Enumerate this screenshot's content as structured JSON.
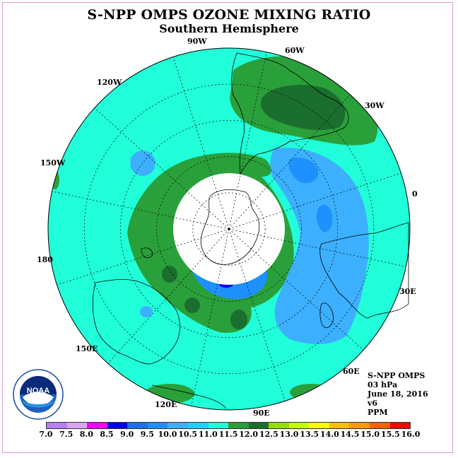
{
  "title": "S-NPP OMPS OZONE MIXING RATIO",
  "subtitle": "Southern Hemisphere",
  "longitude_labels": [
    "90W",
    "60W",
    "30W",
    "0",
    "30E",
    "60E",
    "90E",
    "120E",
    "150E",
    "180",
    "150W",
    "120W"
  ],
  "info": {
    "product": "S-NPP OMPS",
    "level": "03 hPa",
    "date": "June 18, 2016",
    "version": "v6",
    "units": "PPM"
  },
  "logo_text": "NOAA",
  "colorbar": {
    "labels": [
      "7.0",
      "7.5",
      "8.0",
      "8.5",
      "9.0",
      "9.5",
      "10.0",
      "10.5",
      "11.0",
      "11.5",
      "12.0",
      "12.5",
      "13.0",
      "13.5",
      "14.0",
      "14.5",
      "15.0",
      "15.5",
      "16.0"
    ],
    "colors": [
      "#b77ef0",
      "#d7a8f2",
      "#ff00ff",
      "#0000ee",
      "#1c6ef0",
      "#1e90ff",
      "#3cb0ff",
      "#22cfff",
      "#20ffd9",
      "#2aa03a",
      "#1a6e2e",
      "#96dc00",
      "#c8ff00",
      "#ffff00",
      "#ffc000",
      "#ff9800",
      "#ff6000",
      "#ff0000",
      "#8b4513"
    ]
  },
  "colors": {
    "background_field": "#20ffd9",
    "high_band": "#2aa03a",
    "high_core": "#1a6e2e",
    "low_region": "#3cb0ff",
    "low_core": "#1e90ff",
    "polar_night": "#ffffff"
  }
}
